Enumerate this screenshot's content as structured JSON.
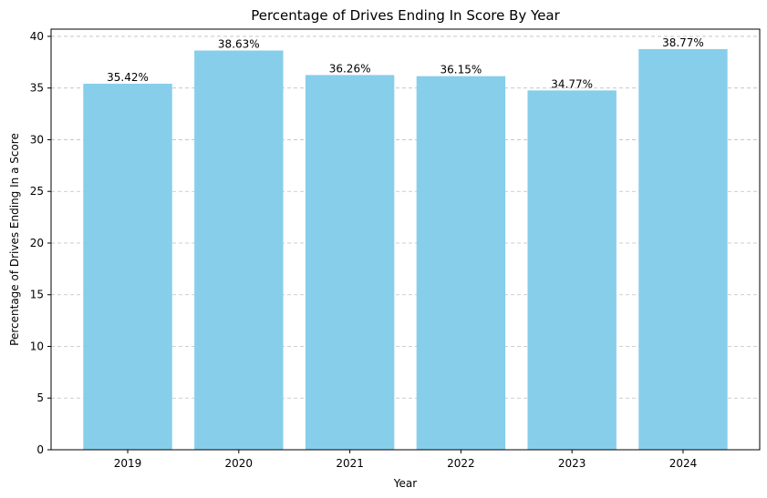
{
  "chart_data": {
    "type": "bar",
    "title": "Percentage of Drives Ending In Score By Year",
    "xlabel": "Year",
    "ylabel": "Percentage of Drives Ending In a Score",
    "categories": [
      "2019",
      "2020",
      "2021",
      "2022",
      "2023",
      "2024"
    ],
    "values": [
      35.42,
      38.63,
      36.26,
      36.15,
      34.77,
      38.77
    ],
    "data_labels": [
      "35.42%",
      "38.63%",
      "36.26%",
      "36.15%",
      "34.77%",
      "38.77%"
    ],
    "ylim": [
      0,
      40.7
    ],
    "yticks": [
      0,
      5,
      10,
      15,
      20,
      25,
      30,
      35,
      40
    ],
    "grid": "y-dashed",
    "bar_color": "#87ceeb"
  }
}
